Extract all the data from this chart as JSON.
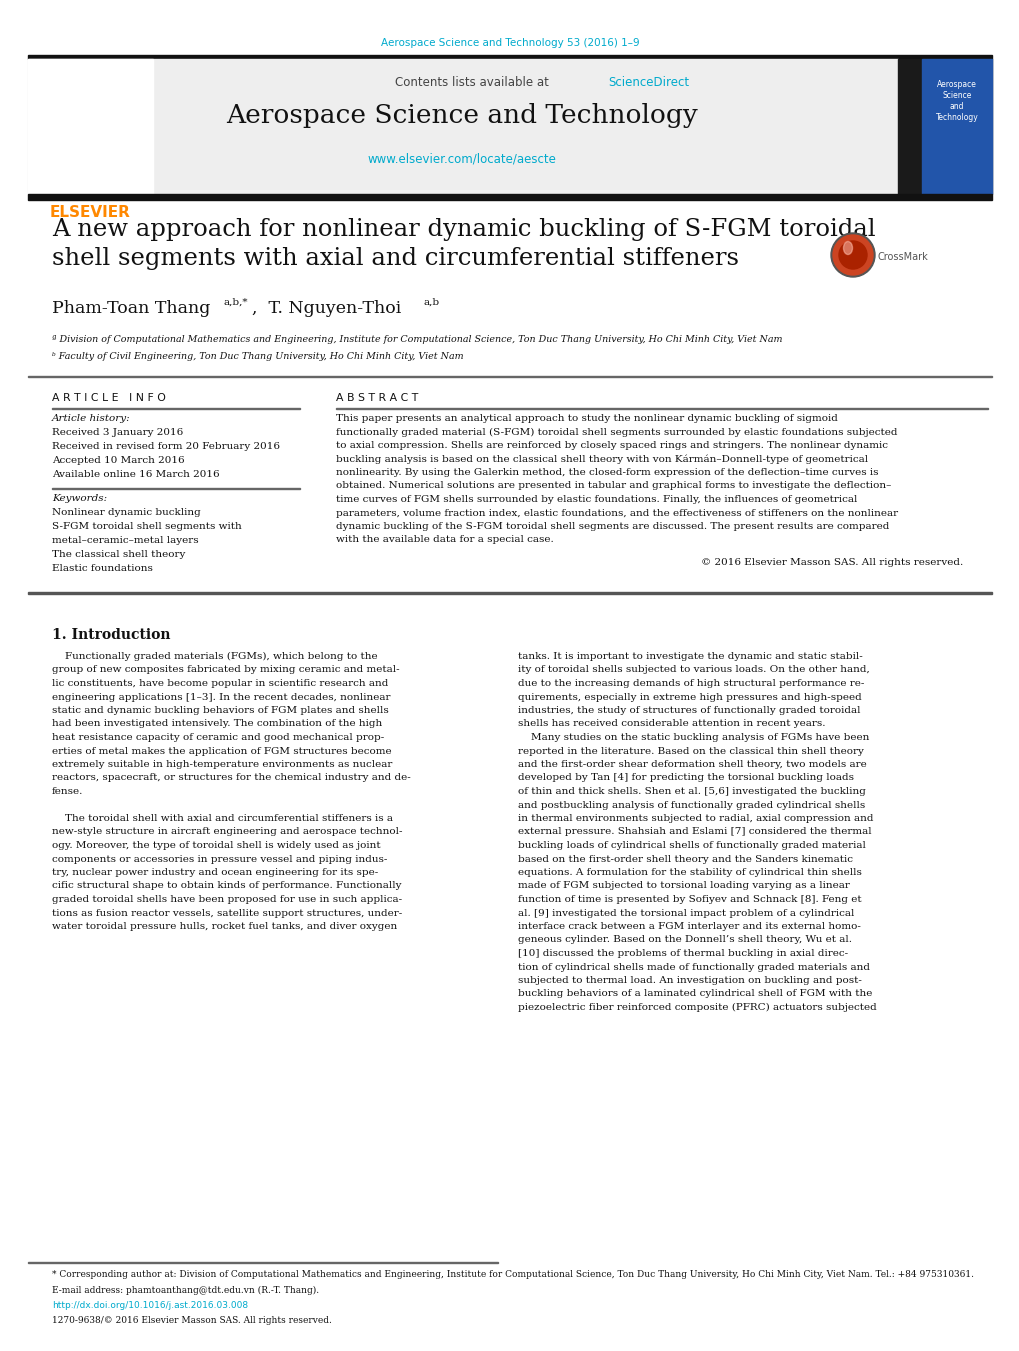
{
  "bg_color": "#ffffff",
  "journal_ref": "Aerospace Science and Technology 53 (2016) 1–9",
  "journal_ref_color": "#00aacc",
  "header_bg": "#eeeeee",
  "sciencedirect_color": "#00aacc",
  "journal_title": "Aerospace Science and Technology",
  "journal_url": "www.elsevier.com/locate/aescte",
  "journal_url_color": "#00aacc",
  "sidebar_bg": "#1a1a1a",
  "sidebar_blue": "#2255aa",
  "paper_title": "A new approach for nonlinear dynamic buckling of S-FGM toroidal\nshell segments with axial and circumferential stiffeners",
  "affil_a": "ª Division of Computational Mathematics and Engineering, Institute for Computational Science, Ton Duc Thang University, Ho Chi Minh City, Viet Nam",
  "affil_b": "ᵇ Faculty of Civil Engineering, Ton Duc Thang University, Ho Chi Minh City, Viet Nam",
  "article_info_title": "A R T I C L E   I N F O",
  "abstract_title": "A B S T R A C T",
  "article_history_label": "Article history:",
  "received": "Received 3 January 2016",
  "received_revised": "Received in revised form 20 February 2016",
  "accepted": "Accepted 10 March 2016",
  "available": "Available online 16 March 2016",
  "keywords_label": "Keywords:",
  "keyword1": "Nonlinear dynamic buckling",
  "keyword2": "S-FGM toroidal shell segments with",
  "keyword2b": "metal–ceramic–metal layers",
  "keyword3": "The classical shell theory",
  "keyword4": "Elastic foundations",
  "copyright": "© 2016 Elsevier Masson SAS. All rights reserved.",
  "section_title": "1. Introduction",
  "footer_note": "* Corresponding author at: Division of Computational Mathematics and Engineering, Institute for Computational Science, Ton Duc Thang University, Ho Chi Minh City, Viet Nam. Tel.: +84 975310361.",
  "footer_email": "E-mail address: phamtoanthang@tdt.edu.vn (R.-T. Thang).",
  "footer_doi": "http://dx.doi.org/10.1016/j.ast.2016.03.008",
  "footer_issn": "1270-9638/© 2016 Elsevier Masson SAS. All rights reserved.",
  "abstract_lines": [
    "This paper presents an analytical approach to study the nonlinear dynamic buckling of sigmoid",
    "functionally graded material (S-FGM) toroidal shell segments surrounded by elastic foundations subjected",
    "to axial compression. Shells are reinforced by closely spaced rings and stringers. The nonlinear dynamic",
    "buckling analysis is based on the classical shell theory with von Kármán–Donnell-type of geometrical",
    "nonlinearity. By using the Galerkin method, the closed-form expression of the deflection–time curves is",
    "obtained. Numerical solutions are presented in tabular and graphical forms to investigate the deflection–",
    "time curves of FGM shells surrounded by elastic foundations. Finally, the influences of geometrical",
    "parameters, volume fraction index, elastic foundations, and the effectiveness of stiffeners on the nonlinear",
    "dynamic buckling of the S-FGM toroidal shell segments are discussed. The present results are compared",
    "with the available data for a special case."
  ],
  "intro_left_lines": [
    "    Functionally graded materials (FGMs), which belong to the",
    "group of new composites fabricated by mixing ceramic and metal-",
    "lic constituents, have become popular in scientific research and",
    "engineering applications [1–3]. In the recent decades, nonlinear",
    "static and dynamic buckling behaviors of FGM plates and shells",
    "had been investigated intensively. The combination of the high",
    "heat resistance capacity of ceramic and good mechanical prop-",
    "erties of metal makes the application of FGM structures become",
    "extremely suitable in high-temperature environments as nuclear",
    "reactors, spacecraft, or structures for the chemical industry and de-",
    "fense.",
    "",
    "    The toroidal shell with axial and circumferential stiffeners is a",
    "new-style structure in aircraft engineering and aerospace technol-",
    "ogy. Moreover, the type of toroidal shell is widely used as joint",
    "components or accessories in pressure vessel and piping indus-",
    "try, nuclear power industry and ocean engineering for its spe-",
    "cific structural shape to obtain kinds of performance. Functionally",
    "graded toroidal shells have been proposed for use in such applica-",
    "tions as fusion reactor vessels, satellite support structures, under-",
    "water toroidal pressure hulls, rocket fuel tanks, and diver oxygen"
  ],
  "intro_right_lines": [
    "tanks. It is important to investigate the dynamic and static stabil-",
    "ity of toroidal shells subjected to various loads. On the other hand,",
    "due to the increasing demands of high structural performance re-",
    "quirements, especially in extreme high pressures and high-speed",
    "industries, the study of structures of functionally graded toroidal",
    "shells has received considerable attention in recent years.",
    "    Many studies on the static buckling analysis of FGMs have been",
    "reported in the literature. Based on the classical thin shell theory",
    "and the first-order shear deformation shell theory, two models are",
    "developed by Tan [4] for predicting the torsional buckling loads",
    "of thin and thick shells. Shen et al. [5,6] investigated the buckling",
    "and postbuckling analysis of functionally graded cylindrical shells",
    "in thermal environments subjected to radial, axial compression and",
    "external pressure. Shahsiah and Eslami [7] considered the thermal",
    "buckling loads of cylindrical shells of functionally graded material",
    "based on the first-order shell theory and the Sanders kinematic",
    "equations. A formulation for the stability of cylindrical thin shells",
    "made of FGM subjected to torsional loading varying as a linear",
    "function of time is presented by Sofiyev and Schnack [8]. Feng et",
    "al. [9] investigated the torsional impact problem of a cylindrical",
    "interface crack between a FGM interlayer and its external homo-",
    "geneous cylinder. Based on the Donnell’s shell theory, Wu et al.",
    "[10] discussed the problems of thermal buckling in axial direc-",
    "tion of cylindrical shells made of functionally graded materials and",
    "subjected to thermal load. An investigation on buckling and post-",
    "buckling behaviors of a laminated cylindrical shell of FGM with the",
    "piezoelectric fiber reinforced composite (PFRC) actuators subjected"
  ]
}
